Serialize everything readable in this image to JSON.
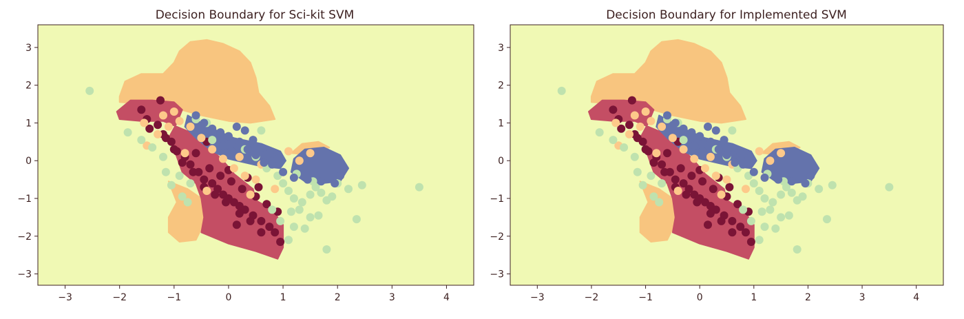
{
  "colors": {
    "background": "#f0f9b4",
    "class0": "#c44e64",
    "class1": "#f8c57f",
    "class2": "#bfe2ae",
    "class3": "#6473ac",
    "class0_point": "#7a1436",
    "class1_point": "#fdc98a",
    "class2_point": "#bfe2ae",
    "class3_point": "#6473ac",
    "axis": "#3b1f1f"
  },
  "chart_data": [
    {
      "type": "scatter",
      "title": "Decision Boundary for Sci-kit SVM",
      "xlabel": "",
      "ylabel": "",
      "xlim": [
        -3.5,
        4.5
      ],
      "ylim": [
        -3.3,
        3.6
      ],
      "xticks": [
        -3,
        -2,
        -1,
        0,
        1,
        2,
        3,
        4
      ],
      "yticks": [
        -3,
        -2,
        -1,
        0,
        1,
        2,
        3
      ],
      "grid": false,
      "legend": "none",
      "regions": [
        {
          "class": 1,
          "points": [
            [
              -2.0,
              1.7
            ],
            [
              -1.9,
              2.1
            ],
            [
              -1.6,
              2.3
            ],
            [
              -1.2,
              2.3
            ],
            [
              -1.0,
              2.6
            ],
            [
              -0.9,
              2.9
            ],
            [
              -0.7,
              3.15
            ],
            [
              -0.4,
              3.2
            ],
            [
              -0.1,
              3.1
            ],
            [
              0.2,
              2.9
            ],
            [
              0.4,
              2.6
            ],
            [
              0.5,
              2.2
            ],
            [
              0.55,
              1.8
            ],
            [
              0.75,
              1.45
            ],
            [
              0.85,
              1.1
            ],
            [
              0.4,
              1.0
            ],
            [
              0.0,
              1.05
            ],
            [
              -0.5,
              1.2
            ],
            [
              -1.0,
              1.4
            ],
            [
              -1.5,
              1.5
            ],
            [
              -2.0,
              1.55
            ]
          ]
        },
        {
          "class": 1,
          "points": [
            [
              -1.1,
              -0.55
            ],
            [
              -0.75,
              -0.75
            ],
            [
              -0.5,
              -1.0
            ],
            [
              -0.45,
              -1.4
            ],
            [
              -0.5,
              -1.8
            ],
            [
              -0.6,
              -2.1
            ],
            [
              -0.9,
              -2.15
            ],
            [
              -1.1,
              -1.9
            ],
            [
              -1.1,
              -1.5
            ],
            [
              -0.95,
              -1.1
            ]
          ]
        },
        {
          "class": 1,
          "points": [
            [
              1.15,
              0.2
            ],
            [
              1.35,
              0.45
            ],
            [
              1.65,
              0.5
            ],
            [
              1.85,
              0.35
            ],
            [
              1.5,
              0.15
            ]
          ]
        },
        {
          "class": 0,
          "points": [
            [
              -2.05,
              1.3
            ],
            [
              -1.8,
              1.6
            ],
            [
              -1.4,
              1.6
            ],
            [
              -1.0,
              1.55
            ],
            [
              -0.85,
              1.35
            ],
            [
              -0.95,
              1.0
            ],
            [
              -1.1,
              0.6
            ],
            [
              -1.0,
              0.3
            ],
            [
              -0.85,
              -0.3
            ],
            [
              -0.6,
              -0.6
            ],
            [
              -0.5,
              -1.0
            ],
            [
              -0.45,
              -1.5
            ],
            [
              -0.5,
              -1.9
            ],
            [
              0.0,
              -2.2
            ],
            [
              0.5,
              -2.4
            ],
            [
              0.9,
              -2.6
            ],
            [
              1.0,
              -2.3
            ],
            [
              1.0,
              -1.7
            ],
            [
              0.8,
              -1.3
            ],
            [
              0.5,
              -1.05
            ],
            [
              0.45,
              -0.75
            ],
            [
              0.1,
              -0.35
            ],
            [
              -0.1,
              0.0
            ],
            [
              -0.35,
              0.35
            ],
            [
              -0.7,
              0.75
            ],
            [
              -1.2,
              1.05
            ],
            [
              -1.6,
              1.05
            ],
            [
              -2.0,
              1.1
            ]
          ]
        },
        {
          "class": 3,
          "points": [
            [
              -0.75,
              1.2
            ],
            [
              -0.3,
              0.85
            ],
            [
              0.1,
              0.6
            ],
            [
              0.6,
              0.45
            ],
            [
              0.95,
              0.25
            ],
            [
              1.05,
              0.0
            ],
            [
              0.95,
              -0.2
            ],
            [
              0.6,
              -0.15
            ],
            [
              0.3,
              -0.05
            ],
            [
              0.0,
              0.05
            ],
            [
              -0.3,
              0.25
            ],
            [
              -0.6,
              0.6
            ],
            [
              -0.8,
              0.9
            ]
          ]
        },
        {
          "class": 3,
          "points": [
            [
              1.15,
              -0.3
            ],
            [
              1.2,
              0.05
            ],
            [
              1.4,
              0.3
            ],
            [
              1.75,
              0.35
            ],
            [
              2.05,
              0.15
            ],
            [
              2.2,
              -0.2
            ],
            [
              2.05,
              -0.55
            ],
            [
              1.7,
              -0.6
            ],
            [
              1.4,
              -0.55
            ]
          ]
        }
      ],
      "points": [
        {
          "class": 0,
          "x": [
            -1.25,
            -1.6,
            -1.5,
            -1.45,
            -1.3,
            -1.2,
            -1.05,
            -0.95,
            -0.8,
            -0.7,
            -0.55,
            -0.45,
            -0.3,
            -0.2,
            -0.1,
            0.0,
            0.1,
            0.2,
            0.3,
            0.45,
            0.6,
            0.75,
            0.85,
            0.95,
            0.6,
            0.4,
            0.2,
            -0.05,
            -0.25,
            -0.45,
            -0.65,
            -0.85,
            -1.0,
            -1.15,
            -0.6,
            -0.35,
            -0.15,
            0.05,
            0.25,
            0.5,
            0.7,
            0.9,
            0.15,
            -0.4,
            0.35,
            0.55,
            0.0
          ],
          "y": [
            1.6,
            1.35,
            1.1,
            0.85,
            0.95,
            0.7,
            0.5,
            0.25,
            0.1,
            -0.1,
            -0.3,
            -0.5,
            -0.6,
            -0.75,
            -0.9,
            -1.0,
            -1.1,
            -1.2,
            -1.3,
            -1.45,
            -1.6,
            -1.75,
            -1.9,
            -2.15,
            -1.9,
            -1.6,
            -1.4,
            -1.1,
            -0.9,
            -0.7,
            -0.3,
            -0.05,
            0.3,
            0.6,
            0.2,
            -0.2,
            -0.4,
            -0.55,
            -0.75,
            -0.95,
            -1.15,
            -1.35,
            -1.7,
            0.5,
            -0.45,
            -0.7,
            -0.25
          ]
        },
        {
          "class": 1,
          "x": [
            -1.5,
            -1.3,
            -1.1,
            -0.9,
            -0.7,
            -0.5,
            -0.3,
            -0.1,
            0.1,
            0.3,
            0.5,
            -1.2,
            -1.0,
            -0.8,
            0.2,
            0.6,
            1.1,
            1.3,
            1.5,
            -1.55,
            -0.4,
            0.4,
            0.85
          ],
          "y": [
            0.4,
            0.7,
            0.9,
            1.05,
            0.9,
            0.6,
            0.3,
            0.05,
            -0.2,
            -0.4,
            -0.5,
            1.2,
            1.3,
            0.2,
            0.1,
            -0.1,
            0.25,
            0.0,
            0.2,
            1.0,
            -0.8,
            -0.9,
            -0.75
          ]
        },
        {
          "class": 2,
          "x": [
            -2.55,
            -1.85,
            -1.6,
            -1.4,
            -1.2,
            -1.15,
            -0.9,
            -0.7,
            -1.05,
            -0.85,
            -0.75,
            -0.3,
            0.3,
            0.5,
            0.7,
            0.9,
            1.0,
            1.1,
            1.2,
            1.35,
            1.5,
            1.6,
            1.7,
            1.8,
            1.9,
            2.0,
            2.2,
            2.45,
            2.35,
            1.8,
            1.5,
            1.3,
            1.2,
            1.1,
            0.95,
            0.8,
            1.4,
            1.65,
            1.15,
            3.5,
            -0.4,
            -0.6,
            0.6,
            1.25,
            1.55
          ],
          "y": [
            1.85,
            0.75,
            0.55,
            0.35,
            0.1,
            -0.3,
            -0.4,
            -0.6,
            -0.65,
            -0.95,
            -1.1,
            0.55,
            0.3,
            0.1,
            -0.2,
            -0.4,
            -0.6,
            -0.8,
            -1.0,
            -1.1,
            -0.9,
            -0.7,
            -0.85,
            -1.05,
            -0.95,
            -0.6,
            -0.75,
            -0.65,
            -1.55,
            -2.35,
            -1.5,
            -1.3,
            -1.75,
            -2.1,
            -1.6,
            -1.3,
            -1.8,
            -1.45,
            -1.35,
            -0.7,
            1.0,
            1.1,
            0.8,
            -0.35,
            -0.55
          ]
        },
        {
          "class": 3,
          "x": [
            -0.6,
            -0.45,
            -0.3,
            -0.15,
            0.0,
            0.15,
            0.3,
            0.45,
            0.6,
            0.75,
            0.9,
            0.2,
            -0.1,
            0.5,
            0.8,
            1.0,
            1.2,
            1.45,
            1.7,
            1.95,
            2.05,
            0.35,
            0.65,
            0.05
          ],
          "y": [
            1.2,
            1.0,
            0.85,
            0.75,
            0.65,
            0.9,
            0.8,
            0.55,
            0.35,
            0.2,
            0.05,
            0.5,
            0.4,
            0.15,
            -0.1,
            -0.3,
            -0.45,
            -0.5,
            -0.55,
            -0.6,
            -0.4,
            0.3,
            -0.05,
            0.25
          ]
        }
      ]
    },
    {
      "type": "scatter",
      "title": "Decision Boundary for Implemented SVM",
      "xlabel": "",
      "ylabel": "",
      "xlim": [
        -3.5,
        4.5
      ],
      "ylim": [
        -3.3,
        3.6
      ],
      "xticks": [
        -3,
        -2,
        -1,
        0,
        1,
        2,
        3,
        4
      ],
      "yticks": [
        -3,
        -2,
        -1,
        0,
        1,
        2,
        3
      ],
      "grid": false,
      "legend": "none",
      "regions": "same-as-first",
      "points": "same-as-first"
    }
  ]
}
